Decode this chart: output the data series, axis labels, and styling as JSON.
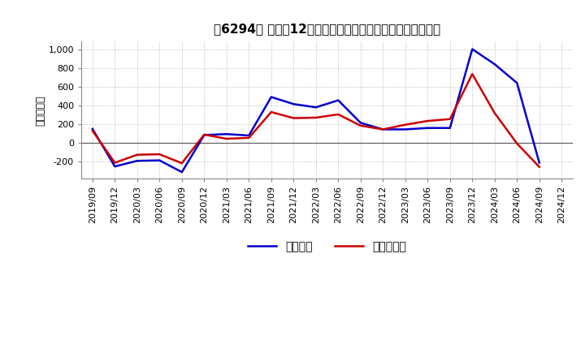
{
  "title": "［6294］ 利益の12か月移動合計の対前年同期増減額の推移",
  "ylabel": "（百万円）",
  "x_labels": [
    "2019/09",
    "2019/12",
    "2020/03",
    "2020/06",
    "2020/09",
    "2020/12",
    "2021/03",
    "2021/06",
    "2021/09",
    "2021/12",
    "2022/03",
    "2022/06",
    "2022/09",
    "2022/12",
    "2023/03",
    "2023/06",
    "2023/09",
    "2023/12",
    "2024/03",
    "2024/06",
    "2024/09",
    "2024/12"
  ],
  "operating_profit": [
    150,
    -250,
    -190,
    -185,
    -310,
    85,
    95,
    80,
    490,
    415,
    380,
    455,
    215,
    145,
    145,
    160,
    160,
    1000,
    840,
    640,
    -210,
    null
  ],
  "net_profit": [
    130,
    -210,
    -125,
    -120,
    -215,
    90,
    45,
    55,
    330,
    265,
    270,
    305,
    185,
    145,
    195,
    235,
    255,
    735,
    320,
    -5,
    -255,
    null
  ],
  "operating_color": "#0000cc",
  "net_color": "#cc0000",
  "ylim": [
    -380,
    1080
  ],
  "yticks": [
    -200,
    0,
    200,
    400,
    600,
    800,
    1000
  ],
  "bg_color": "#ffffff",
  "plot_bg_color": "#ffffff",
  "grid_color": "#aaaaaa",
  "zero_line_color": "#555555",
  "legend_label_operating": "経常利益",
  "legend_label_net": "当期純利益",
  "line_width": 1.8
}
